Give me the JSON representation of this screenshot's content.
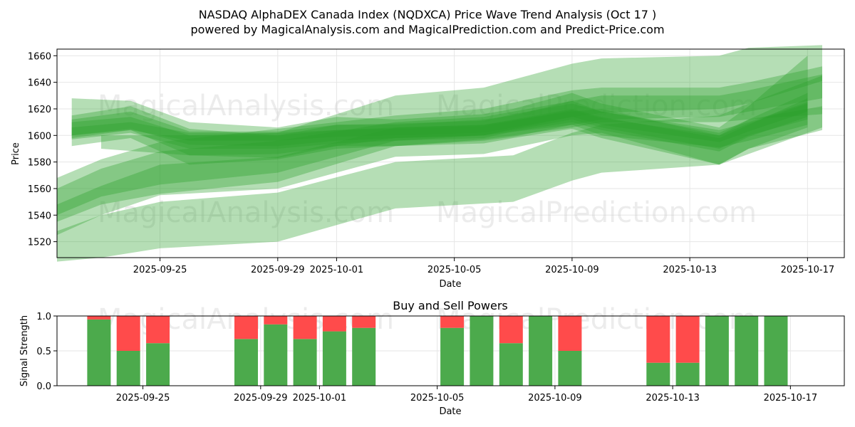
{
  "title_line1": "NASDAQ AlphaDEX Canada Index (NQDXCA) Price Wave Trend Analysis (Oct 17 )",
  "title_line2": "powered by MagicalAnalysis.com and MagicalPrediction.com and Predict-Price.com",
  "watermarks": [
    "MagicalAnalysis.com",
    "MagicalPrediction.com"
  ],
  "colors": {
    "band": "#2ca02c",
    "buy": "#4caa4c",
    "sell": "#ff4b4b",
    "grid": "#e6e6e6"
  },
  "chart_data": [
    {
      "type": "area",
      "title": "",
      "xlabel": "Date",
      "ylabel": "Price",
      "xlim": [
        "2025-09-21T12:00",
        "2025-10-18T06:00"
      ],
      "ylim": [
        1508,
        1665
      ],
      "x_ticks": [
        "2025-09-25",
        "2025-09-29",
        "2025-10-01",
        "2025-10-05",
        "2025-10-09",
        "2025-10-13",
        "2025-10-17"
      ],
      "y_ticks": [
        1520,
        1540,
        1560,
        1580,
        1600,
        1620,
        1640,
        1660
      ],
      "grid": true,
      "series": [
        {
          "x": [
            "2025-09-22",
            "2025-09-24",
            "2025-09-26",
            "2025-09-29",
            "2025-10-01",
            "2025-10-03",
            "2025-10-06",
            "2025-10-07",
            "2025-10-09",
            "2025-10-10",
            "2025-10-14",
            "2025-10-15",
            "2025-10-17"
          ],
          "lower": [
            1598,
            1604,
            1585,
            1583,
            1592,
            1592,
            1596,
            1599,
            1608,
            1600,
            1591,
            1596,
            1608
          ],
          "upper": [
            1615,
            1622,
            1605,
            1600,
            1608,
            1608,
            1612,
            1615,
            1626,
            1618,
            1604,
            1610,
            1625
          ]
        },
        {
          "x": [
            "2025-09-22",
            "2025-09-24",
            "2025-09-26",
            "2025-09-29",
            "2025-10-01",
            "2025-10-03",
            "2025-10-06",
            "2025-10-07",
            "2025-10-09",
            "2025-10-10",
            "2025-10-14",
            "2025-10-15",
            "2025-10-17"
          ],
          "lower": [
            1597,
            1602,
            1590,
            1590,
            1594,
            1596,
            1598,
            1603,
            1610,
            1604,
            1588,
            1599,
            1614
          ],
          "upper": [
            1612,
            1618,
            1603,
            1603,
            1608,
            1609,
            1611,
            1616,
            1624,
            1618,
            1602,
            1612,
            1632
          ]
        },
        {
          "x": [
            "2025-09-22",
            "2025-09-24",
            "2025-09-26",
            "2025-09-29",
            "2025-10-01",
            "2025-10-03",
            "2025-10-06",
            "2025-10-07",
            "2025-10-09",
            "2025-10-10",
            "2025-10-14",
            "2025-10-15",
            "2025-10-17"
          ],
          "lower": [
            1600,
            1605,
            1593,
            1592,
            1596,
            1598,
            1600,
            1604,
            1612,
            1606,
            1590,
            1600,
            1612
          ],
          "upper": [
            1610,
            1614,
            1600,
            1600,
            1604,
            1606,
            1608,
            1612,
            1620,
            1614,
            1598,
            1608,
            1628
          ]
        },
        {
          "x": [
            "2025-09-22",
            "2025-09-24",
            "2025-09-26",
            "2025-09-29",
            "2025-10-01",
            "2025-10-03",
            "2025-10-06",
            "2025-10-07",
            "2025-10-09",
            "2025-10-10",
            "2025-10-14",
            "2025-10-15",
            "2025-10-17"
          ],
          "lower": [
            1592,
            1598,
            1578,
            1582,
            1590,
            1592,
            1594,
            1598,
            1605,
            1598,
            1578,
            1590,
            1606
          ],
          "upper": [
            1628,
            1626,
            1610,
            1606,
            1614,
            1612,
            1616,
            1620,
            1632,
            1624,
            1606,
            1622,
            1660
          ]
        },
        {
          "x": [
            "2025-09-22",
            "2025-09-24",
            "2025-09-26",
            "2025-09-29",
            "2025-10-01",
            "2025-10-03",
            "2025-10-06",
            "2025-10-07",
            "2025-10-09",
            "2025-10-10",
            "2025-10-14",
            "2025-10-15",
            "2025-10-17"
          ],
          "lower": [
            1600,
            1604,
            1596,
            1596,
            1599,
            1600,
            1602,
            1606,
            1614,
            1608,
            1595,
            1603,
            1618
          ],
          "upper": [
            1606,
            1610,
            1602,
            1602,
            1604,
            1605,
            1607,
            1611,
            1619,
            1613,
            1600,
            1609,
            1624
          ]
        },
        {
          "x": [
            "2025-09-21T12:00",
            "2025-09-23",
            "2025-09-25",
            "2025-09-29",
            "2025-10-03",
            "2025-10-06",
            "2025-10-09",
            "2025-10-10",
            "2025-10-14",
            "2025-10-15",
            "2025-10-17T12:00"
          ],
          "lower": [
            1535,
            1548,
            1556,
            1565,
            1592,
            1597,
            1606,
            1610,
            1610,
            1612,
            1616
          ],
          "upper": [
            1568,
            1582,
            1595,
            1605,
            1615,
            1620,
            1634,
            1636,
            1636,
            1640,
            1652
          ]
        },
        {
          "x": [
            "2025-09-21T12:00",
            "2025-09-23",
            "2025-09-25",
            "2025-09-29",
            "2025-10-03",
            "2025-10-06",
            "2025-10-09",
            "2025-10-10",
            "2025-10-14",
            "2025-10-15",
            "2025-10-17T12:00"
          ],
          "lower": [
            1540,
            1554,
            1563,
            1572,
            1596,
            1600,
            1608,
            1612,
            1614,
            1618,
            1628
          ],
          "upper": [
            1560,
            1575,
            1588,
            1596,
            1610,
            1614,
            1626,
            1630,
            1630,
            1634,
            1646
          ]
        },
        {
          "x": [
            "2025-09-21T12:00",
            "2025-09-23",
            "2025-09-25",
            "2025-09-29",
            "2025-10-03",
            "2025-10-06",
            "2025-10-09",
            "2025-10-10",
            "2025-10-14",
            "2025-10-15",
            "2025-10-17T12:00"
          ],
          "lower": [
            1525,
            1540,
            1555,
            1560,
            1584,
            1586,
            1600,
            1602,
            1578,
            1590,
            1604
          ],
          "upper": [
            1548,
            1562,
            1578,
            1584,
            1606,
            1608,
            1618,
            1620,
            1600,
            1612,
            1622
          ]
        },
        {
          "x": [
            "2025-09-21T12:00",
            "2025-09-23",
            "2025-09-25",
            "2025-09-29",
            "2025-10-03",
            "2025-10-07",
            "2025-10-09",
            "2025-10-10",
            "2025-10-14",
            "2025-10-15",
            "2025-10-17T12:00"
          ],
          "lower": [
            1505,
            1508,
            1515,
            1520,
            1545,
            1550,
            1566,
            1572,
            1578,
            1586,
            1606
          ],
          "upper": [
            1528,
            1540,
            1550,
            1557,
            1580,
            1585,
            1602,
            1608,
            1615,
            1624,
            1645
          ]
        },
        {
          "x": [
            "2025-09-23",
            "2025-09-26",
            "2025-09-29",
            "2025-10-03",
            "2025-10-06",
            "2025-10-07",
            "2025-10-09",
            "2025-10-10",
            "2025-10-14",
            "2025-10-15",
            "2025-10-17T12:00"
          ],
          "lower": [
            1590,
            1585,
            1586,
            1598,
            1600,
            1605,
            1614,
            1617,
            1620,
            1624,
            1641
          ],
          "upper": [
            1600,
            1600,
            1602,
            1630,
            1636,
            1642,
            1654,
            1658,
            1660,
            1666,
            1668
          ]
        }
      ]
    },
    {
      "type": "bar",
      "title": "Buy and Sell Powers",
      "xlabel": "Date",
      "ylabel": "Signal Strength",
      "ylim": [
        0,
        1
      ],
      "x_ticks": [
        "2025-09-25",
        "2025-09-29",
        "2025-10-01",
        "2025-10-05",
        "2025-10-09",
        "2025-10-13",
        "2025-10-17"
      ],
      "y_ticks": [
        "0.0",
        "0.5",
        "1.0"
      ],
      "grid": true,
      "categories": [
        "2025-09-23",
        "2025-09-24",
        "2025-09-25",
        "2025-09-28",
        "2025-09-29",
        "2025-09-30",
        "2025-10-01",
        "2025-10-02",
        "2025-10-05",
        "2025-10-06",
        "2025-10-07",
        "2025-10-08",
        "2025-10-09",
        "2025-10-12",
        "2025-10-13",
        "2025-10-14",
        "2025-10-15",
        "2025-10-16"
      ],
      "series": [
        {
          "name": "Buy",
          "values": [
            0.95,
            0.5,
            0.61,
            0.67,
            0.88,
            0.67,
            0.78,
            0.83,
            0.83,
            1.0,
            0.61,
            1.0,
            0.5,
            0.33,
            0.33,
            1.0,
            1.0,
            1.0
          ]
        },
        {
          "name": "Sell",
          "values": [
            0.05,
            0.5,
            0.39,
            0.33,
            0.12,
            0.33,
            0.22,
            0.17,
            0.17,
            0.0,
            0.39,
            0.0,
            0.5,
            0.67,
            0.67,
            0.0,
            0.0,
            0.0
          ]
        }
      ]
    }
  ]
}
